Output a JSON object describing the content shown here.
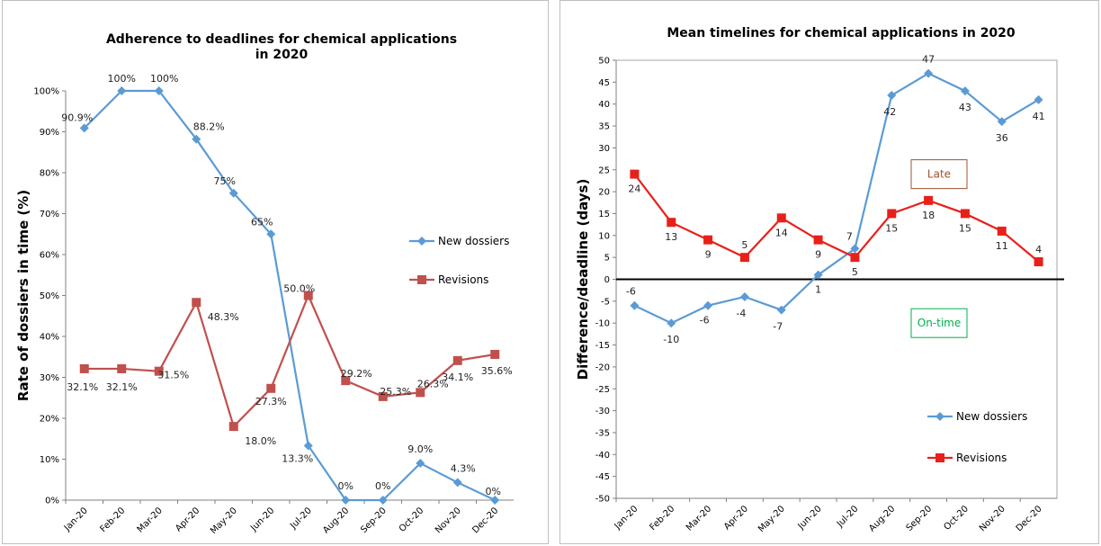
{
  "chart_data": [
    {
      "type": "line",
      "title": [
        "Adherence to deadlines for chemical applications",
        "in 2020"
      ],
      "xlabel": "",
      "ylabel": "Rate of dossiers in time (%)",
      "ylim": [
        0,
        100
      ],
      "yticks": [
        "0%",
        "10%",
        "20%",
        "30%",
        "40%",
        "50%",
        "60%",
        "70%",
        "80%",
        "90%",
        "100%"
      ],
      "categories": [
        "Jan-20",
        "Feb-20",
        "Mar-20",
        "Apr-20",
        "May-20",
        "Jun-20",
        "Jul-20",
        "Aug-20",
        "Sep-20",
        "Oct-20",
        "Nov-20",
        "Dec-20"
      ],
      "legend_position": "right",
      "series": [
        {
          "name": "New dossiers",
          "color": "#5b9bd5",
          "marker": "diamond",
          "values": [
            90.9,
            100,
            100,
            88.2,
            75,
            65,
            13.3,
            0,
            0,
            9.0,
            4.3,
            0
          ],
          "labels": [
            "90.9%",
            "100%",
            "100%",
            "88.2%",
            "75%",
            "65%",
            "13.3%",
            "0%",
            "0%",
            "9.0%",
            "4.3%",
            "0%"
          ]
        },
        {
          "name": "Revisions",
          "color": "#c0504d",
          "marker": "square",
          "values": [
            32.1,
            32.1,
            31.5,
            48.3,
            18.0,
            27.3,
            50.0,
            29.2,
            25.3,
            26.3,
            34.1,
            35.6
          ],
          "labels": [
            "32.1%",
            "32.1%",
            "31.5%",
            "48.3%",
            "18.0%",
            "27.3%",
            "50.0%",
            "29.2%",
            "25.3%",
            "26.3%",
            "34.1%",
            "35.6%"
          ]
        }
      ]
    },
    {
      "type": "line",
      "title": [
        "Mean timelines for chemical applications in 2020"
      ],
      "xlabel": "",
      "ylabel": "Difference/deadline (days)",
      "ylim": [
        -50,
        50
      ],
      "ytick_step": 5,
      "categories": [
        "Jan-20",
        "Feb-20",
        "Mar-20",
        "Apr-20",
        "May-20",
        "Jun-20",
        "Jul-20",
        "Aug-20",
        "Sep-20",
        "Oct-20",
        "Nov-20",
        "Dec-20"
      ],
      "legend_position": "bottom-right",
      "annotations": [
        {
          "text": "Late",
          "color": "#a0522d",
          "y": 24
        },
        {
          "text": "On-time",
          "color": "#00b050",
          "y": -10
        }
      ],
      "series": [
        {
          "name": "New dossiers",
          "color": "#5b9bd5",
          "marker": "diamond",
          "values": [
            -6,
            -10,
            -6,
            -4,
            -7,
            1,
            7,
            42,
            47,
            43,
            36,
            41
          ],
          "labels": [
            "-6",
            "-10",
            "-6",
            "-4",
            "-7",
            "1",
            "7",
            "42",
            "47",
            "43",
            "36",
            "41"
          ]
        },
        {
          "name": "Revisions",
          "color": "#e8201a",
          "marker": "square",
          "values": [
            24,
            13,
            9,
            5,
            14,
            9,
            5,
            15,
            18,
            15,
            11,
            4
          ],
          "labels": [
            "24",
            "13",
            "9",
            "5",
            "14",
            "9",
            "5",
            "15",
            "18",
            "15",
            "11",
            "4"
          ]
        }
      ]
    }
  ]
}
